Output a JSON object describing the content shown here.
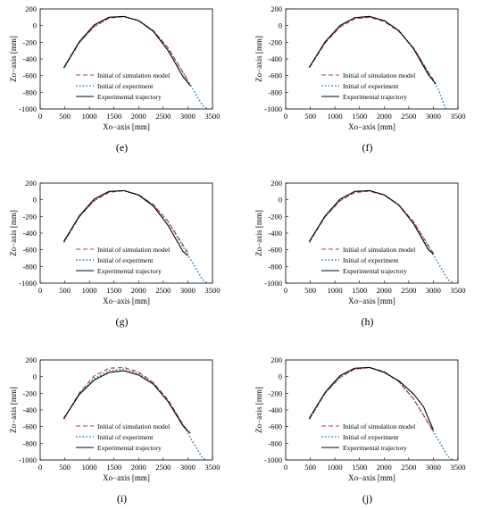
{
  "chart_data": [
    {
      "panel_label": "(e)",
      "type": "line",
      "xlabel": "Xo−axis [mm]",
      "ylabel": "Zo−axis [mm]",
      "xlim": [
        0,
        3500
      ],
      "ylim": [
        -1000,
        200
      ],
      "xticks": [
        "0",
        "500",
        "1000",
        "1500",
        "2000",
        "2500",
        "3000",
        "3500"
      ],
      "yticks": [
        "200",
        "0",
        "-200",
        "-400",
        "-600",
        "-800",
        "-1000"
      ],
      "legend_position": "lower-right",
      "series": [
        {
          "name": "Initial of simulation model",
          "color": "#c0392b",
          "style": "dashed",
          "x": [
            480,
            800,
            1100,
            1400,
            1700,
            2000,
            2300,
            2600,
            2900,
            3000
          ],
          "y": [
            -510,
            -200,
            -10,
            90,
            110,
            60,
            -60,
            -270,
            -560,
            -660
          ]
        },
        {
          "name": "Initial of experiment",
          "color": "#2e86c1",
          "style": "dotted",
          "x": [
            480,
            800,
            1100,
            1400,
            1700,
            2000,
            2300,
            2600,
            2900,
            3100,
            3300,
            3400
          ],
          "y": [
            -510,
            -200,
            -10,
            90,
            110,
            60,
            -60,
            -270,
            -560,
            -760,
            -960,
            -1000
          ]
        },
        {
          "name": "Experimental trajectory",
          "color": "#000000",
          "style": "solid",
          "x": [
            480,
            800,
            1100,
            1400,
            1700,
            2000,
            2300,
            2600,
            2900,
            3050
          ],
          "y": [
            -505,
            -190,
            10,
            100,
            110,
            60,
            -70,
            -300,
            -610,
            -720
          ]
        }
      ]
    },
    {
      "panel_label": "(f)",
      "type": "line",
      "xlabel": "Xo−axis [mm]",
      "ylabel": "Zo−axis [mm]",
      "xlim": [
        0,
        3500
      ],
      "ylim": [
        -1000,
        200
      ],
      "xticks": [
        "0",
        "500",
        "1000",
        "1500",
        "2000",
        "2500",
        "3000",
        "3500"
      ],
      "yticks": [
        "200",
        "0",
        "-200",
        "-400",
        "-600",
        "-800",
        "-1000"
      ],
      "legend_position": "lower-right",
      "series": [
        {
          "name": "Initial of simulation model",
          "color": "#c0392b",
          "style": "dashed",
          "x": [
            480,
            800,
            1100,
            1400,
            1700,
            2000,
            2300,
            2600,
            2900,
            3000
          ],
          "y": [
            -505,
            -210,
            -20,
            80,
            100,
            50,
            -70,
            -270,
            -560,
            -650
          ]
        },
        {
          "name": "Initial of experiment",
          "color": "#2e86c1",
          "style": "dotted",
          "x": [
            480,
            800,
            1100,
            1400,
            1700,
            2000,
            2300,
            2600,
            2900,
            3100,
            3250
          ],
          "y": [
            -505,
            -200,
            -10,
            90,
            110,
            60,
            -60,
            -270,
            -560,
            -760,
            -1000
          ]
        },
        {
          "name": "Experimental trajectory",
          "color": "#000000",
          "style": "solid",
          "x": [
            480,
            800,
            1100,
            1400,
            1700,
            2000,
            2300,
            2600,
            2900,
            3050
          ],
          "y": [
            -500,
            -195,
            0,
            95,
            110,
            60,
            -60,
            -280,
            -590,
            -700
          ]
        }
      ]
    },
    {
      "panel_label": "(g)",
      "type": "line",
      "xlabel": "Xo−axis [mm]",
      "ylabel": "Zo−axis [mm]",
      "xlim": [
        0,
        3500
      ],
      "ylim": [
        -1000,
        200
      ],
      "xticks": [
        "0",
        "500",
        "1000",
        "1500",
        "2000",
        "2500",
        "3000",
        "3500"
      ],
      "yticks": [
        "200",
        "0",
        "-200",
        "-400",
        "-600",
        "-800",
        "-1000"
      ],
      "legend_position": "lower-right",
      "series": [
        {
          "name": "Initial of simulation model",
          "color": "#c0392b",
          "style": "dashed",
          "x": [
            480,
            800,
            1100,
            1400,
            1700,
            2000,
            2300,
            2600,
            2900,
            3000
          ],
          "y": [
            -510,
            -200,
            -10,
            90,
            110,
            60,
            -60,
            -260,
            -540,
            -630
          ]
        },
        {
          "name": "Initial of experiment",
          "color": "#2e86c1",
          "style": "dotted",
          "x": [
            480,
            800,
            1100,
            1400,
            1700,
            2000,
            2300,
            2600,
            2900,
            3100,
            3300,
            3400
          ],
          "y": [
            -510,
            -200,
            -10,
            90,
            110,
            60,
            -60,
            -270,
            -560,
            -760,
            -960,
            -1000
          ]
        },
        {
          "name": "Experimental trajectory",
          "color": "#000000",
          "style": "solid",
          "x": [
            480,
            800,
            1100,
            1400,
            1700,
            2000,
            2300,
            2600,
            2900,
            3000
          ],
          "y": [
            -500,
            -190,
            10,
            100,
            110,
            55,
            -75,
            -310,
            -620,
            -670
          ]
        }
      ]
    },
    {
      "panel_label": "(h)",
      "type": "line",
      "xlabel": "Xo−axis [mm]",
      "ylabel": "Zo−axis [mm]",
      "xlim": [
        0,
        3500
      ],
      "ylim": [
        -1000,
        200
      ],
      "xticks": [
        "0",
        "500",
        "1000",
        "1500",
        "2000",
        "2500",
        "3000",
        "3500"
      ],
      "yticks": [
        "200",
        "0",
        "-200",
        "-400",
        "-600",
        "-800",
        "-1000"
      ],
      "legend_position": "lower-right",
      "series": [
        {
          "name": "Initial of simulation model",
          "color": "#c0392b",
          "style": "dashed",
          "x": [
            480,
            800,
            1100,
            1400,
            1700,
            2000,
            2300,
            2600,
            2900,
            3000
          ],
          "y": [
            -510,
            -205,
            -15,
            85,
            105,
            55,
            -65,
            -265,
            -550,
            -640
          ]
        },
        {
          "name": "Initial of experiment",
          "color": "#2e86c1",
          "style": "dotted",
          "x": [
            480,
            800,
            1100,
            1400,
            1700,
            2000,
            2300,
            2600,
            2900,
            3100,
            3300,
            3400
          ],
          "y": [
            -510,
            -200,
            -10,
            90,
            110,
            60,
            -60,
            -270,
            -560,
            -760,
            -960,
            -1000
          ]
        },
        {
          "name": "Experimental trajectory",
          "color": "#000000",
          "style": "solid",
          "x": [
            480,
            800,
            1100,
            1400,
            1700,
            2000,
            2300,
            2600,
            2900,
            3000
          ],
          "y": [
            -500,
            -195,
            5,
            100,
            110,
            60,
            -65,
            -290,
            -600,
            -650
          ]
        }
      ]
    },
    {
      "panel_label": "(i)",
      "type": "line",
      "xlabel": "Xo−axis [mm]",
      "ylabel": "Zo−axis [mm]",
      "xlim": [
        0,
        3500
      ],
      "ylim": [
        -1000,
        200
      ],
      "xticks": [
        "0",
        "500",
        "1000",
        "1500",
        "2000",
        "2500",
        "3000",
        "3500"
      ],
      "yticks": [
        "200",
        "0",
        "-200",
        "-400",
        "-600",
        "-800",
        "-1000"
      ],
      "legend_position": "lower-right",
      "series": [
        {
          "name": "Initial of simulation model",
          "color": "#c0392b",
          "style": "dashed",
          "x": [
            480,
            800,
            1100,
            1400,
            1700,
            2000,
            2300,
            2600,
            2900,
            3000
          ],
          "y": [
            -510,
            -190,
            10,
            100,
            110,
            55,
            -70,
            -280,
            -570,
            -660
          ]
        },
        {
          "name": "Initial of experiment",
          "color": "#2e86c1",
          "style": "dotted",
          "x": [
            480,
            800,
            1100,
            1400,
            1700,
            2000,
            2300,
            2600,
            2900,
            3100,
            3300,
            3400
          ],
          "y": [
            -510,
            -200,
            -20,
            70,
            90,
            40,
            -80,
            -290,
            -580,
            -780,
            -980,
            -1000
          ]
        },
        {
          "name": "Experimental trajectory",
          "color": "#000000",
          "style": "solid",
          "x": [
            480,
            800,
            1100,
            1400,
            1700,
            2000,
            2300,
            2600,
            2900,
            3050
          ],
          "y": [
            -500,
            -210,
            -40,
            50,
            70,
            20,
            -90,
            -300,
            -590,
            -680
          ]
        }
      ]
    },
    {
      "panel_label": "(j)",
      "type": "line",
      "xlabel": "Xo−axis [mm]",
      "ylabel": "Zo−axis [mm]",
      "xlim": [
        0,
        3500
      ],
      "ylim": [
        -1000,
        200
      ],
      "xticks": [
        "0",
        "500",
        "1000",
        "1500",
        "2000",
        "2500",
        "3000",
        "3500"
      ],
      "yticks": [
        "200",
        "0",
        "-200",
        "-400",
        "-600",
        "-800",
        "-1000"
      ],
      "legend_position": "lower-right",
      "series": [
        {
          "name": "Initial of simulation model",
          "color": "#c0392b",
          "style": "dashed",
          "x": [
            480,
            800,
            1100,
            1400,
            1700,
            2000,
            2300,
            2600,
            2900,
            3000
          ],
          "y": [
            -510,
            -200,
            -10,
            90,
            110,
            60,
            -60,
            -270,
            -560,
            -660
          ]
        },
        {
          "name": "Initial of experiment",
          "color": "#2e86c1",
          "style": "dotted",
          "x": [
            480,
            800,
            1100,
            1400,
            1700,
            2000,
            2300,
            2600,
            2900,
            3100,
            3300,
            3400
          ],
          "y": [
            -510,
            -200,
            -10,
            90,
            110,
            60,
            -60,
            -270,
            -560,
            -760,
            -960,
            -1000
          ]
        },
        {
          "name": "Experimental trajectory",
          "color": "#000000",
          "style": "solid",
          "x": [
            480,
            800,
            1100,
            1400,
            1700,
            2000,
            2300,
            2600,
            2800,
            3000
          ],
          "y": [
            -500,
            -190,
            10,
            100,
            110,
            50,
            -50,
            -210,
            -360,
            -640
          ]
        }
      ]
    }
  ]
}
